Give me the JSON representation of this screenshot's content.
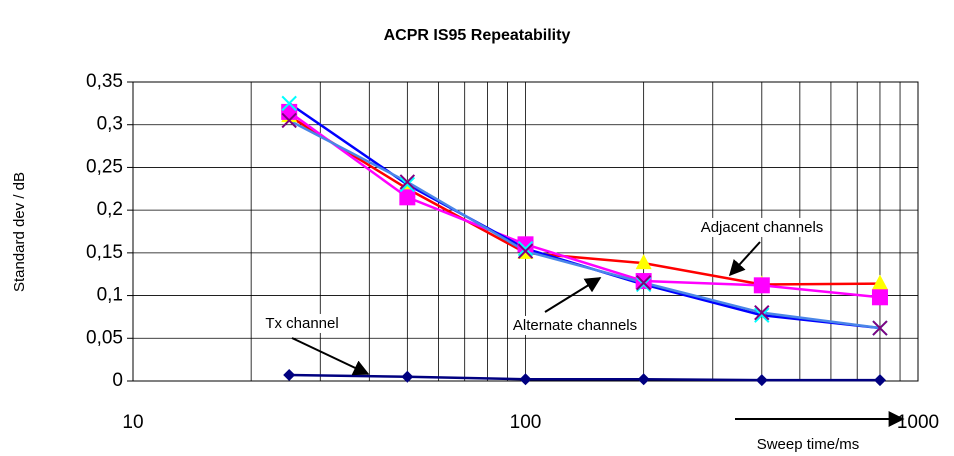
{
  "chart_data": {
    "type": "line",
    "title": "ACPR IS95 Repeatability",
    "ylabel": "Standard dev / dB",
    "xlabel": "Sweep time/ms",
    "annotations": [
      "Adjacent channels",
      "Alternate channels",
      "Tx channel"
    ],
    "x": [
      25,
      50,
      100,
      200,
      400,
      800
    ],
    "xscale": "log",
    "xlim": [
      10,
      1000
    ],
    "xticks": [
      10,
      100,
      1000
    ],
    "xminorticks": [
      20,
      30,
      40,
      50,
      60,
      70,
      80,
      90,
      200,
      300,
      400,
      500,
      600,
      700,
      800,
      900
    ],
    "ylim": [
      0,
      0.35
    ],
    "yticks": [
      0,
      {
        "value": 0.05,
        "label": "0,05"
      },
      {
        "value": 0.1,
        "label": "0,1"
      },
      {
        "value": 0.15,
        "label": "0,15"
      },
      {
        "value": 0.2,
        "label": "0,2"
      },
      {
        "value": 0.25,
        "label": "0,25"
      },
      {
        "value": 0.3,
        "label": "0,3"
      },
      {
        "value": 0.35,
        "label": "0,35"
      }
    ],
    "grid": true,
    "series": [
      {
        "color": "#000080",
        "marker": "diamond",
        "marker_color": "#000080",
        "values": [
          0.007,
          0.005,
          0.002,
          0.002,
          0.001,
          0.001
        ]
      },
      {
        "color": "#ff0000",
        "marker": "triangle",
        "marker_color": "#ffff00",
        "values": [
          0.31,
          0.225,
          0.15,
          0.138,
          0.113,
          0.114
        ]
      },
      {
        "color": "#ff00ff",
        "marker": "square",
        "marker_color": "#ff00ff",
        "values": [
          0.315,
          0.215,
          0.16,
          0.117,
          0.112,
          0.098
        ]
      },
      {
        "color": "#0000ff",
        "marker": "x",
        "marker_color": "#00ffff",
        "values": [
          0.325,
          0.23,
          0.155,
          0.113,
          0.077,
          0.062
        ]
      },
      {
        "color": "#4a86e8",
        "marker": "x",
        "marker_color": "#800080",
        "values": [
          0.305,
          0.233,
          0.152,
          0.115,
          0.08,
          0.062
        ]
      }
    ]
  }
}
